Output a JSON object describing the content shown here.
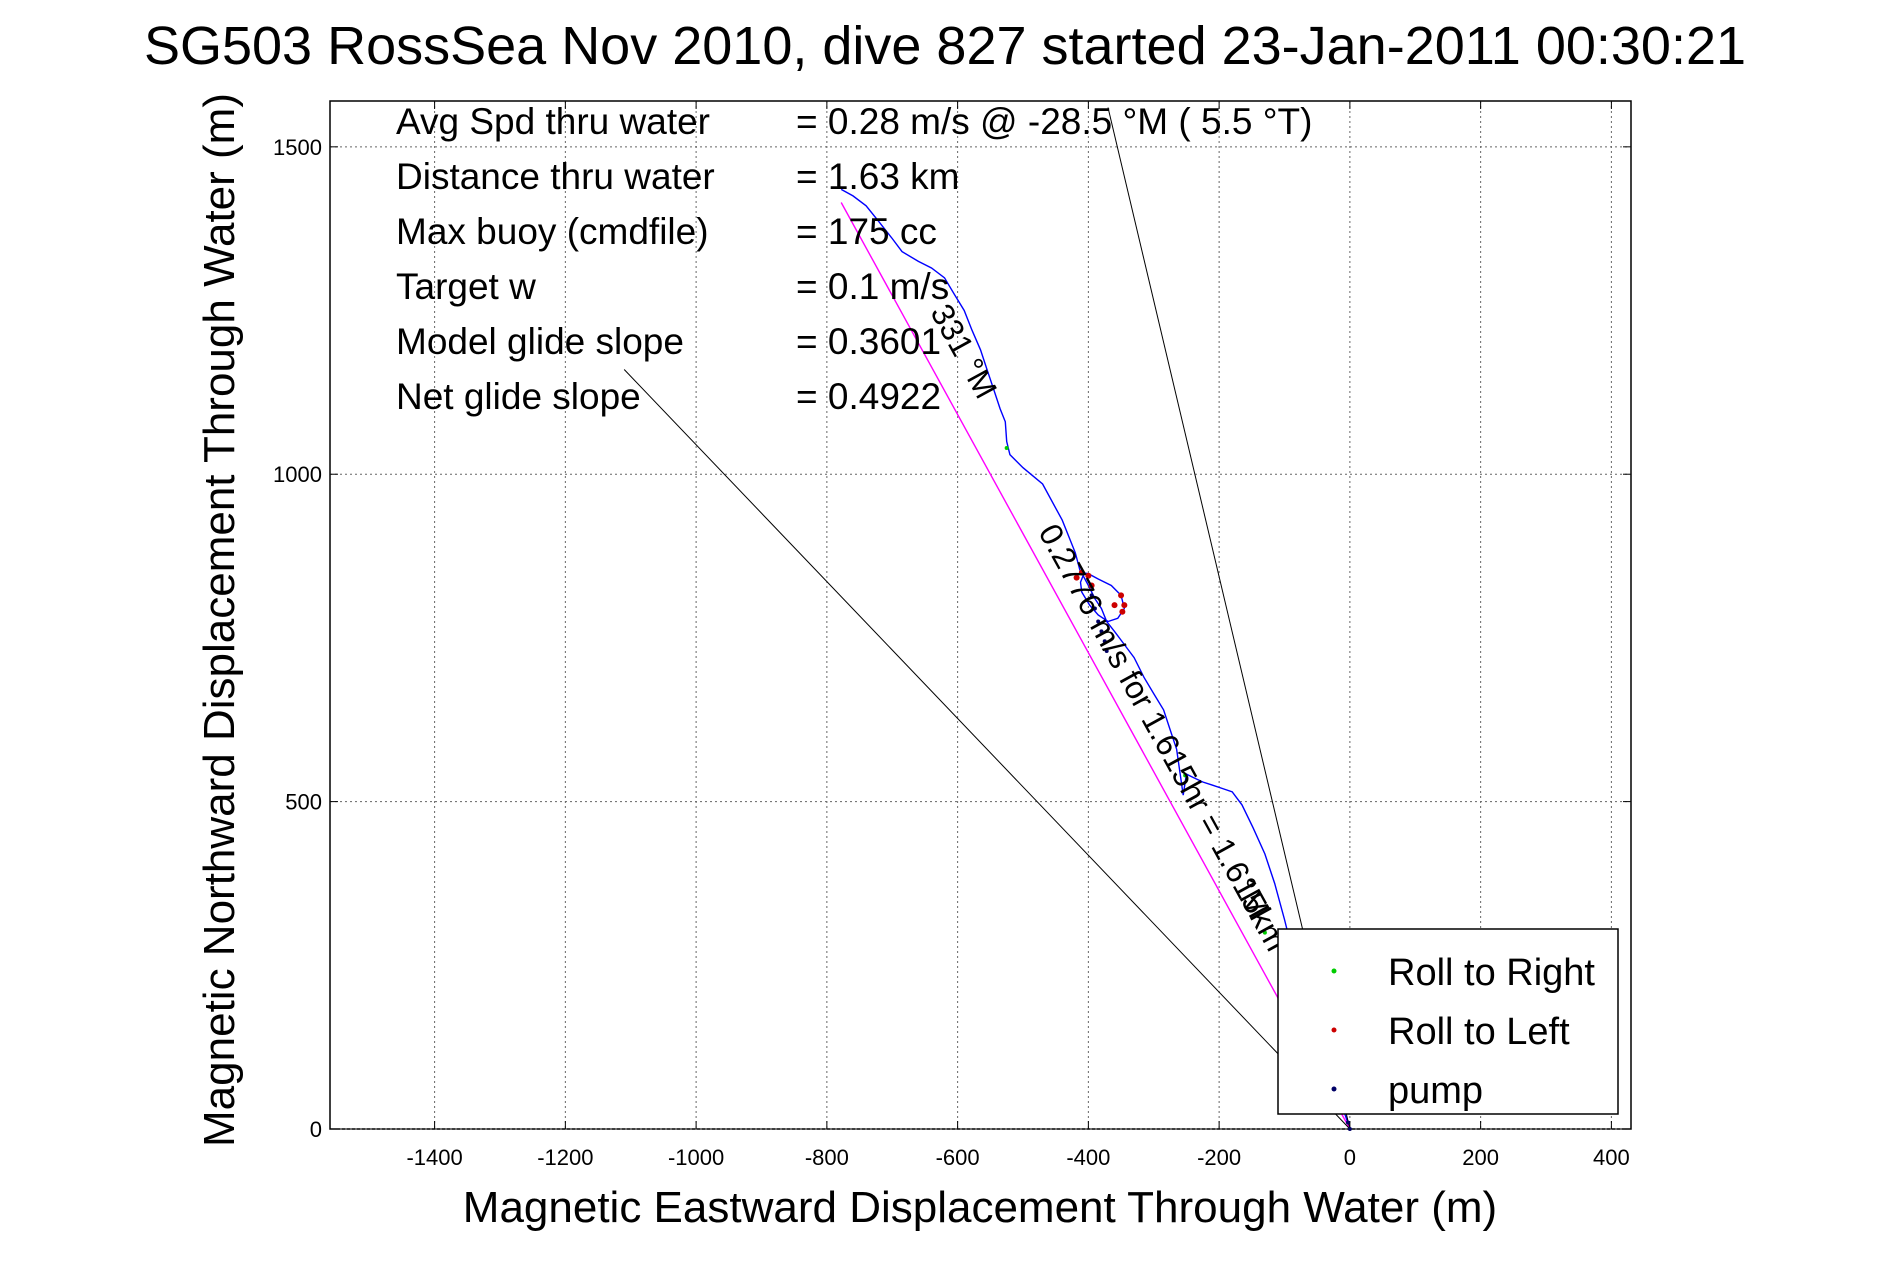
{
  "chart_data": {
    "type": "line",
    "title": "SG503 RossSea Nov 2010, dive 827 started 23-Jan-2011 00:30:21",
    "xlabel": "Magnetic Eastward Displacement Through Water (m)",
    "ylabel": "Magnetic Northward Displacement Through Water (m)",
    "xlim": [
      -1560,
      430
    ],
    "ylim": [
      0,
      1570
    ],
    "xticks": [
      -1400,
      -1200,
      -1000,
      -800,
      -600,
      -400,
      -200,
      0,
      200,
      400
    ],
    "yticks": [
      0,
      500,
      1000,
      1500
    ],
    "grid": true,
    "stats": [
      {
        "label": "Avg Spd thru water",
        "value": "=  0.28 m/s @ -28.5 °M (  5.5 °T)"
      },
      {
        "label": "Distance thru water",
        "value": "=  1.63 km"
      },
      {
        "label": "Max buoy (cmdfile)",
        "value": "= 175 cc"
      },
      {
        "label": "Target w",
        "value": "= 0.1 m/s"
      },
      {
        "label": "Model glide slope",
        "value": "= 0.3601"
      },
      {
        "label": "Net glide slope",
        "value": "= 0.4922"
      }
    ],
    "track_label": "0.2776 m/s for 1.615hr = 1.615km",
    "track_label_bearing": "331 °M",
    "track_label_endpoint": "°M",
    "series": [
      {
        "name": "",
        "color": "#0000ff",
        "style": "line",
        "x": [
          0,
          -10,
          -25,
          -40,
          -55,
          -70,
          -85,
          -100,
          -115,
          -130,
          -148,
          -165,
          -180,
          -195,
          -210,
          -225,
          -240,
          -250,
          -255,
          -265,
          -275,
          -285,
          -300,
          -315,
          -330,
          -345,
          -360,
          -372,
          -380,
          -390,
          -400,
          -408,
          -412,
          -410,
          -398,
          -385,
          -370,
          -355,
          -345,
          -350,
          -365,
          -385,
          -400,
          -412,
          -420,
          -440,
          -470,
          -500,
          -520,
          -525,
          -527,
          -535,
          -545,
          -555,
          -565,
          -578,
          -590,
          -605,
          -620,
          -640,
          -660,
          -685,
          -700,
          -720,
          -740,
          -760,
          -778
        ],
        "y": [
          0,
          30,
          70,
          110,
          155,
          205,
          260,
          320,
          375,
          420,
          460,
          495,
          515,
          520,
          525,
          530,
          537,
          542,
          510,
          580,
          610,
          640,
          665,
          690,
          720,
          740,
          760,
          775,
          795,
          810,
          830,
          845,
          835,
          820,
          800,
          785,
          775,
          780,
          795,
          815,
          830,
          840,
          848,
          850,
          880,
          930,
          985,
          1010,
          1030,
          1050,
          1080,
          1100,
          1130,
          1160,
          1190,
          1220,
          1250,
          1275,
          1300,
          1315,
          1325,
          1340,
          1360,
          1385,
          1410,
          1425,
          1435
        ]
      },
      {
        "name": "",
        "color": "#ff00ff",
        "style": "line",
        "x": [
          0,
          -778
        ],
        "y": [
          0,
          1415
        ]
      },
      {
        "name": "",
        "color": "#000000",
        "style": "thin",
        "x": [
          0,
          -1110
        ],
        "y": [
          0,
          1160
        ]
      },
      {
        "name": "",
        "color": "#000000",
        "style": "thin",
        "x": [
          0,
          -370
        ],
        "y": [
          0,
          1560
        ]
      }
    ],
    "markers": [
      {
        "name": "Roll to Right",
        "color": "#00cc00",
        "x": [
          -525,
          -252,
          -130,
          -10
        ],
        "y": [
          1040,
          540,
          300,
          30
        ]
      },
      {
        "name": "Roll to Left",
        "color": "#cc0000",
        "x": [
          -418,
          -410,
          -400,
          -395,
          -360,
          -348,
          -345,
          -350
        ],
        "y": [
          842,
          850,
          845,
          830,
          800,
          790,
          800,
          815
        ]
      },
      {
        "name": "pump",
        "color": "#000066",
        "x": [
          -395,
          -390,
          -385,
          -380,
          -375,
          -372,
          -3,
          0
        ],
        "y": [
          815,
          795,
          775,
          760,
          745,
          730,
          10,
          0
        ]
      }
    ],
    "legend": {
      "location": "bottom-right",
      "entries": [
        {
          "label": "Roll to Right",
          "color": "#00cc00"
        },
        {
          "label": "Roll to Left",
          "color": "#cc0000"
        },
        {
          "label": "pump",
          "color": "#000066"
        }
      ]
    }
  }
}
